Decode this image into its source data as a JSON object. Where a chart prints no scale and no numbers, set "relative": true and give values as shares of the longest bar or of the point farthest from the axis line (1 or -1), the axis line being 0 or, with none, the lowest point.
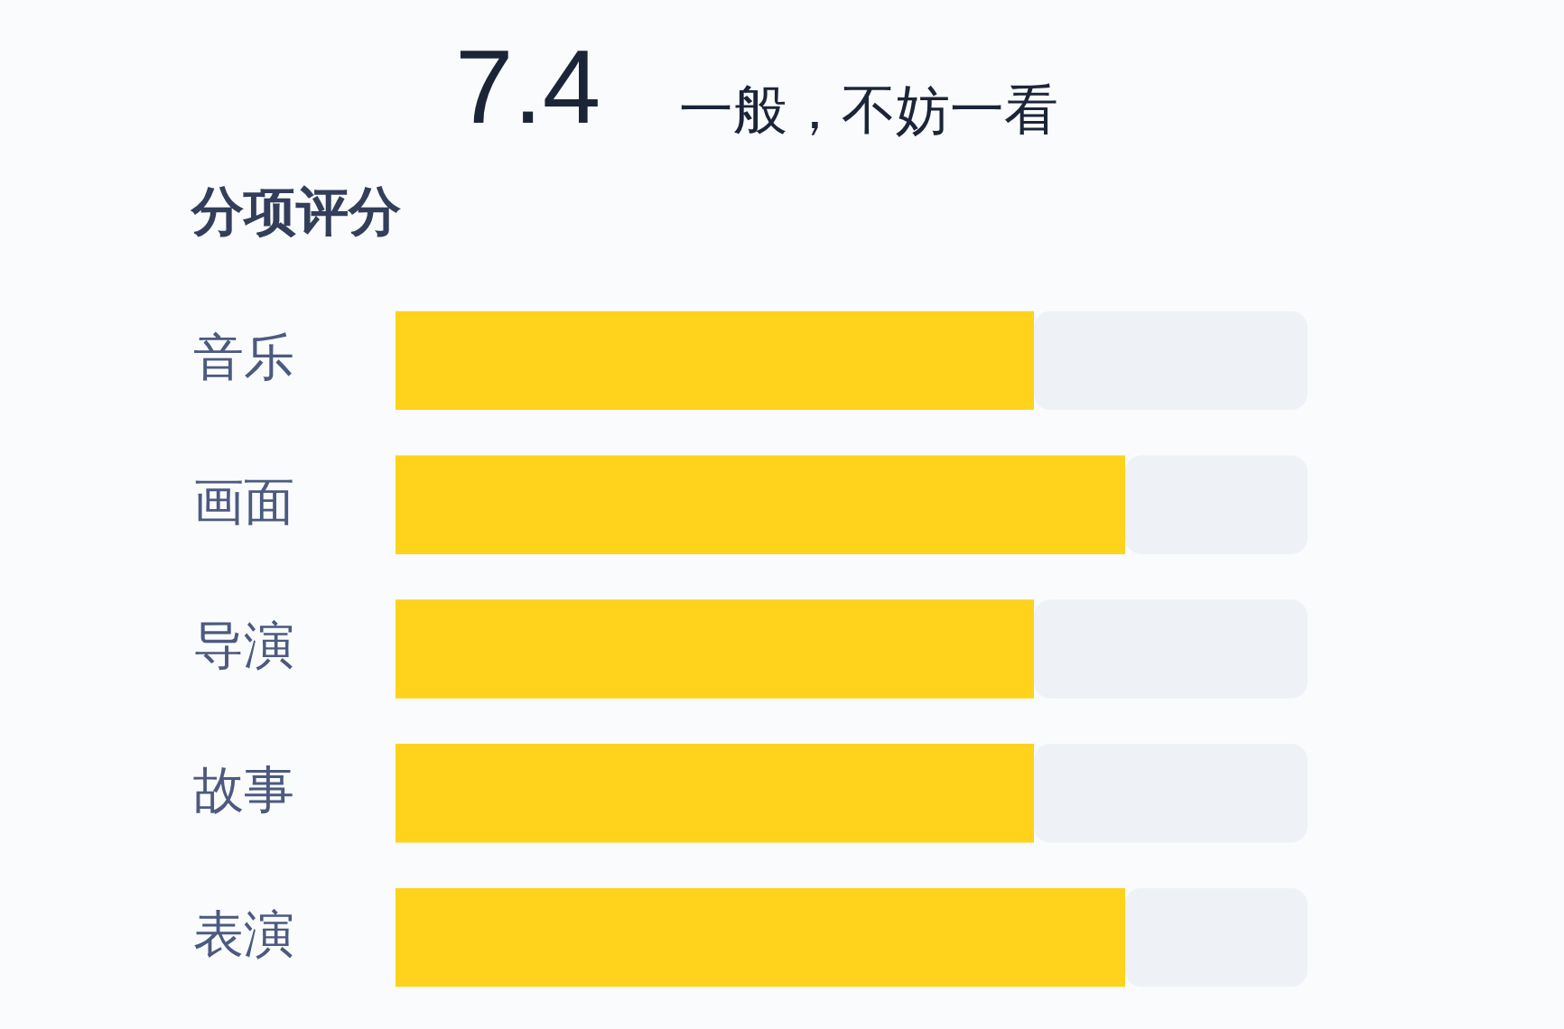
{
  "chart_data": {
    "type": "bar",
    "orientation": "horizontal",
    "stacked": true,
    "relative": true,
    "title": "7.4",
    "subtitle": "一般，不妨一看",
    "annotations": [
      "分项评分"
    ],
    "categories": [
      "音乐",
      "画面",
      "导演",
      "故事",
      "表演"
    ],
    "series": [
      {
        "color": "#ffd21c",
        "values": [
          0.7,
          0.8,
          0.7,
          0.7,
          0.8
        ]
      },
      {
        "color": "#eef1f6",
        "values": [
          0.3,
          0.2,
          0.3,
          0.3,
          0.2
        ]
      }
    ]
  }
}
